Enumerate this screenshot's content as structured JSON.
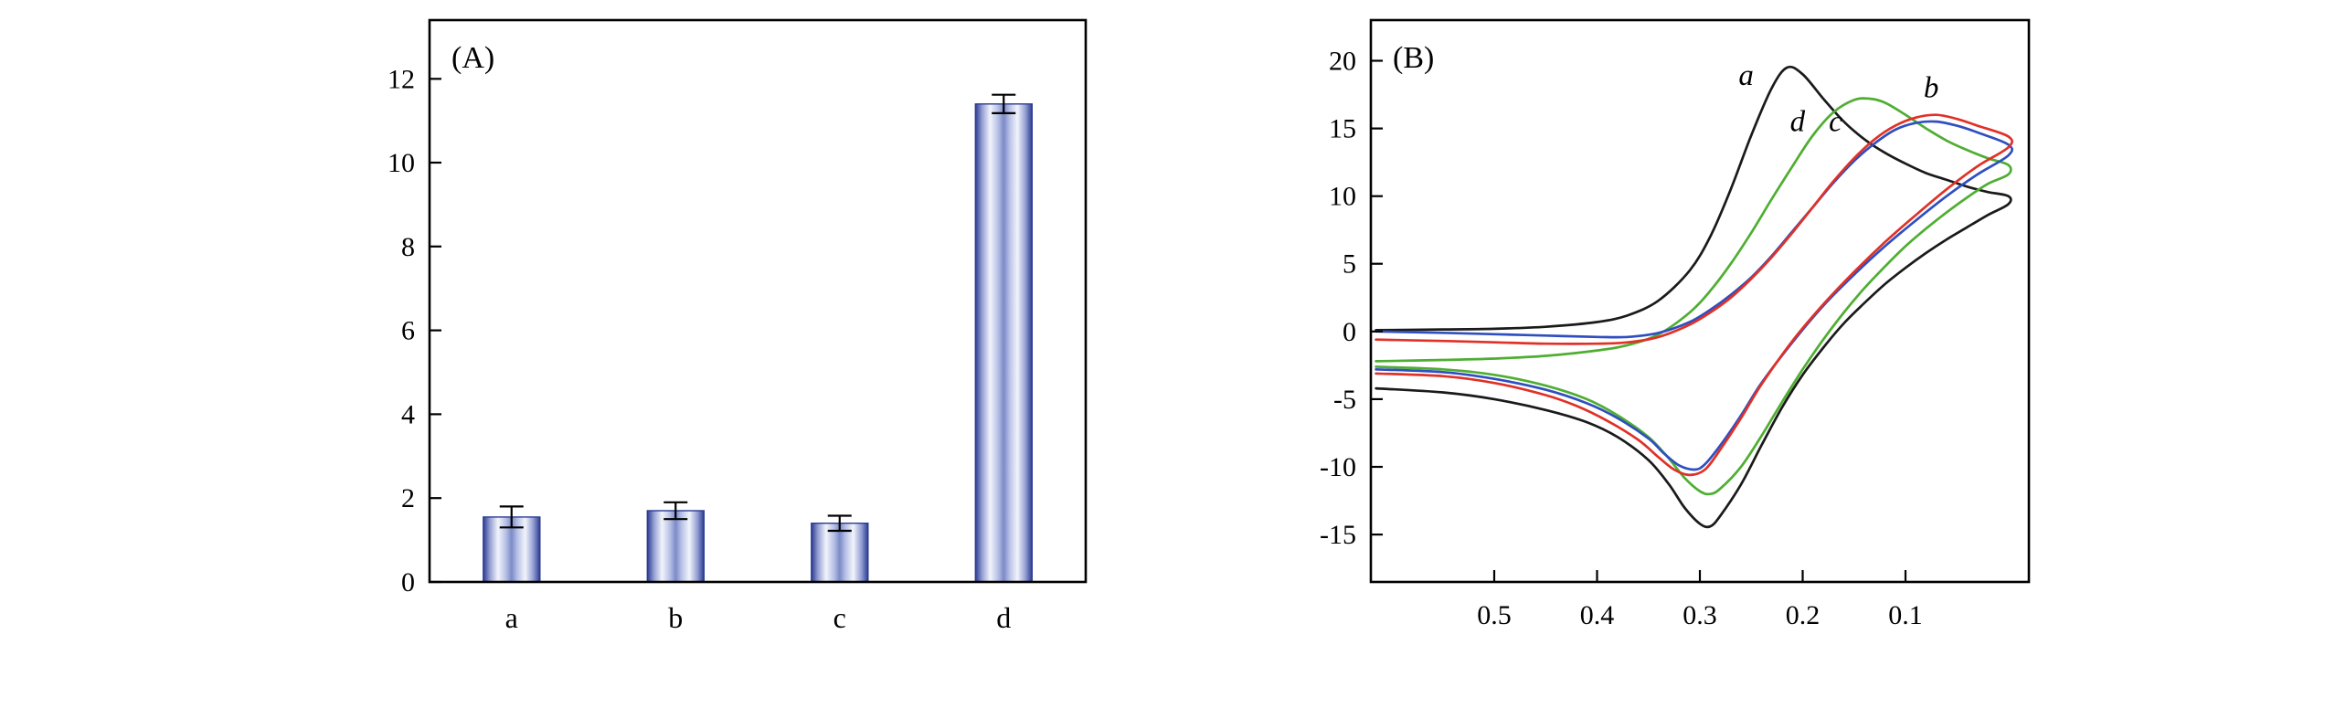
{
  "figure": {
    "background": "#ffffff",
    "axis_color": "#000000"
  },
  "chart_data": [
    {
      "id": "panel-a",
      "type": "bar",
      "panel_label": "(A)",
      "categories": [
        "a",
        "b",
        "c",
        "d"
      ],
      "values": [
        1.55,
        1.7,
        1.4,
        11.4
      ],
      "errors": [
        0.25,
        0.2,
        0.18,
        0.22
      ],
      "yticks": [
        0,
        2,
        4,
        6,
        8,
        10,
        12
      ],
      "ylim": [
        0,
        13.4
      ],
      "xlabel": "",
      "ylabel": "",
      "grid": false,
      "bar_gradient_stops": [
        [
          0.0,
          "#2c3c92"
        ],
        [
          0.12,
          "#96a1d4"
        ],
        [
          0.26,
          "#f2f4fb"
        ],
        [
          0.4,
          "#b6c0e6"
        ],
        [
          0.5,
          "#7c8ac8"
        ],
        [
          0.6,
          "#b6c0e6"
        ],
        [
          0.74,
          "#f2f4fb"
        ],
        [
          0.88,
          "#96a1d4"
        ],
        [
          1.0,
          "#2c3c92"
        ]
      ],
      "bar_edge_color": "#2c3c92",
      "error_bar_color": "#000000"
    },
    {
      "id": "panel-b",
      "type": "line",
      "panel_label": "(B)",
      "xticks": [
        0.5,
        0.4,
        0.3,
        0.2,
        0.1
      ],
      "xlim": [
        0.62,
        -0.02
      ],
      "x_reversed": true,
      "yticks": [
        -15,
        -10,
        -5,
        0,
        5,
        10,
        15,
        20
      ],
      "ylim": [
        -18.5,
        23
      ],
      "xlabel": "",
      "ylabel": "",
      "grid": false,
      "legend_position": "in-plot-annotations",
      "series": [
        {
          "name": "a",
          "color": "#1a1a1a",
          "points": [
            [
              0.615,
              0.1
            ],
            [
              0.55,
              0.15
            ],
            [
              0.5,
              0.2
            ],
            [
              0.45,
              0.35
            ],
            [
              0.4,
              0.7
            ],
            [
              0.37,
              1.2
            ],
            [
              0.34,
              2.3
            ],
            [
              0.31,
              4.5
            ],
            [
              0.29,
              7.0
            ],
            [
              0.27,
              10.5
            ],
            [
              0.25,
              14.5
            ],
            [
              0.23,
              18.0
            ],
            [
              0.215,
              19.5
            ],
            [
              0.2,
              19.0
            ],
            [
              0.18,
              17.2
            ],
            [
              0.16,
              15.5
            ],
            [
              0.14,
              14.2
            ],
            [
              0.12,
              13.2
            ],
            [
              0.1,
              12.4
            ],
            [
              0.08,
              11.7
            ],
            [
              0.06,
              11.2
            ],
            [
              0.04,
              10.7
            ],
            [
              0.02,
              10.3
            ],
            [
              0.0,
              10.0
            ],
            [
              0.0,
              9.4
            ],
            [
              0.02,
              8.6
            ],
            [
              0.04,
              7.7
            ],
            [
              0.06,
              6.8
            ],
            [
              0.08,
              5.8
            ],
            [
              0.1,
              4.7
            ],
            [
              0.12,
              3.5
            ],
            [
              0.14,
              2.1
            ],
            [
              0.16,
              0.6
            ],
            [
              0.18,
              -1.2
            ],
            [
              0.2,
              -3.2
            ],
            [
              0.22,
              -5.6
            ],
            [
              0.24,
              -8.4
            ],
            [
              0.26,
              -11.3
            ],
            [
              0.28,
              -13.6
            ],
            [
              0.29,
              -14.4
            ],
            [
              0.3,
              -14.2
            ],
            [
              0.315,
              -13.0
            ],
            [
              0.33,
              -11.3
            ],
            [
              0.35,
              -9.5
            ],
            [
              0.38,
              -7.8
            ],
            [
              0.41,
              -6.7
            ],
            [
              0.45,
              -5.8
            ],
            [
              0.5,
              -5.0
            ],
            [
              0.55,
              -4.5
            ],
            [
              0.615,
              -4.2
            ]
          ]
        },
        {
          "name": "d",
          "color": "#4fae32",
          "points": [
            [
              0.615,
              -2.2
            ],
            [
              0.55,
              -2.1
            ],
            [
              0.5,
              -2.0
            ],
            [
              0.45,
              -1.8
            ],
            [
              0.4,
              -1.4
            ],
            [
              0.37,
              -1.0
            ],
            [
              0.34,
              -0.2
            ],
            [
              0.31,
              1.4
            ],
            [
              0.29,
              3.0
            ],
            [
              0.27,
              5.0
            ],
            [
              0.25,
              7.3
            ],
            [
              0.23,
              9.8
            ],
            [
              0.21,
              12.2
            ],
            [
              0.19,
              14.5
            ],
            [
              0.17,
              16.2
            ],
            [
              0.15,
              17.1
            ],
            [
              0.135,
              17.2
            ],
            [
              0.12,
              16.9
            ],
            [
              0.1,
              16.0
            ],
            [
              0.08,
              15.0
            ],
            [
              0.06,
              14.1
            ],
            [
              0.04,
              13.4
            ],
            [
              0.02,
              12.8
            ],
            [
              0.0,
              12.3
            ],
            [
              0.0,
              11.6
            ],
            [
              0.02,
              10.9
            ],
            [
              0.04,
              9.9
            ],
            [
              0.06,
              8.8
            ],
            [
              0.08,
              7.6
            ],
            [
              0.1,
              6.3
            ],
            [
              0.12,
              4.8
            ],
            [
              0.14,
              3.2
            ],
            [
              0.16,
              1.4
            ],
            [
              0.18,
              -0.6
            ],
            [
              0.2,
              -2.8
            ],
            [
              0.22,
              -5.2
            ],
            [
              0.24,
              -7.7
            ],
            [
              0.26,
              -10.0
            ],
            [
              0.28,
              -11.6
            ],
            [
              0.29,
              -12.0
            ],
            [
              0.3,
              -11.8
            ],
            [
              0.315,
              -10.8
            ],
            [
              0.33,
              -9.4
            ],
            [
              0.35,
              -7.8
            ],
            [
              0.38,
              -6.2
            ],
            [
              0.41,
              -5.0
            ],
            [
              0.45,
              -4.0
            ],
            [
              0.5,
              -3.2
            ],
            [
              0.55,
              -2.8
            ],
            [
              0.615,
              -2.6
            ]
          ]
        },
        {
          "name": "c",
          "color": "#2f4ec0",
          "points": [
            [
              0.615,
              0.0
            ],
            [
              0.55,
              -0.1
            ],
            [
              0.5,
              -0.2
            ],
            [
              0.45,
              -0.3
            ],
            [
              0.4,
              -0.4
            ],
            [
              0.37,
              -0.4
            ],
            [
              0.34,
              -0.1
            ],
            [
              0.31,
              0.7
            ],
            [
              0.29,
              1.6
            ],
            [
              0.27,
              2.7
            ],
            [
              0.25,
              4.0
            ],
            [
              0.23,
              5.6
            ],
            [
              0.21,
              7.4
            ],
            [
              0.19,
              9.2
            ],
            [
              0.17,
              11.0
            ],
            [
              0.15,
              12.6
            ],
            [
              0.13,
              13.9
            ],
            [
              0.11,
              14.9
            ],
            [
              0.09,
              15.4
            ],
            [
              0.07,
              15.5
            ],
            [
              0.05,
              15.2
            ],
            [
              0.03,
              14.7
            ],
            [
              0.0,
              13.8
            ],
            [
              0.0,
              13.0
            ],
            [
              0.03,
              11.6
            ],
            [
              0.06,
              10.0
            ],
            [
              0.09,
              8.2
            ],
            [
              0.12,
              6.3
            ],
            [
              0.15,
              4.2
            ],
            [
              0.18,
              1.9
            ],
            [
              0.21,
              -0.8
            ],
            [
              0.24,
              -3.8
            ],
            [
              0.26,
              -6.2
            ],
            [
              0.28,
              -8.4
            ],
            [
              0.295,
              -9.8
            ],
            [
              0.305,
              -10.2
            ],
            [
              0.32,
              -9.9
            ],
            [
              0.335,
              -9.0
            ],
            [
              0.35,
              -7.9
            ],
            [
              0.38,
              -6.4
            ],
            [
              0.41,
              -5.3
            ],
            [
              0.45,
              -4.3
            ],
            [
              0.5,
              -3.5
            ],
            [
              0.55,
              -3.0
            ],
            [
              0.615,
              -2.8
            ]
          ]
        },
        {
          "name": "b",
          "color": "#e03127",
          "points": [
            [
              0.615,
              -0.6
            ],
            [
              0.55,
              -0.7
            ],
            [
              0.5,
              -0.8
            ],
            [
              0.45,
              -0.9
            ],
            [
              0.4,
              -0.9
            ],
            [
              0.37,
              -0.8
            ],
            [
              0.34,
              -0.4
            ],
            [
              0.31,
              0.5
            ],
            [
              0.29,
              1.4
            ],
            [
              0.27,
              2.5
            ],
            [
              0.25,
              3.9
            ],
            [
              0.23,
              5.5
            ],
            [
              0.21,
              7.3
            ],
            [
              0.19,
              9.2
            ],
            [
              0.17,
              11.1
            ],
            [
              0.15,
              12.8
            ],
            [
              0.13,
              14.2
            ],
            [
              0.11,
              15.2
            ],
            [
              0.09,
              15.8
            ],
            [
              0.07,
              16.0
            ],
            [
              0.05,
              15.7
            ],
            [
              0.03,
              15.2
            ],
            [
              0.0,
              14.4
            ],
            [
              0.0,
              13.6
            ],
            [
              0.03,
              12.2
            ],
            [
              0.06,
              10.5
            ],
            [
              0.09,
              8.6
            ],
            [
              0.12,
              6.6
            ],
            [
              0.15,
              4.4
            ],
            [
              0.18,
              2.0
            ],
            [
              0.21,
              -0.7
            ],
            [
              0.24,
              -3.9
            ],
            [
              0.26,
              -6.4
            ],
            [
              0.28,
              -8.7
            ],
            [
              0.295,
              -10.2
            ],
            [
              0.31,
              -10.6
            ],
            [
              0.325,
              -10.2
            ],
            [
              0.34,
              -9.3
            ],
            [
              0.36,
              -8.0
            ],
            [
              0.39,
              -6.6
            ],
            [
              0.42,
              -5.5
            ],
            [
              0.45,
              -4.7
            ],
            [
              0.5,
              -3.8
            ],
            [
              0.55,
              -3.3
            ],
            [
              0.615,
              -3.1
            ]
          ]
        }
      ],
      "annotations": [
        {
          "text": "a",
          "x": 0.255,
          "y": 18.2
        },
        {
          "text": "d",
          "x": 0.205,
          "y": 14.8
        },
        {
          "text": "c",
          "x": 0.168,
          "y": 14.8
        },
        {
          "text": "b",
          "x": 0.075,
          "y": 17.3
        }
      ]
    }
  ]
}
